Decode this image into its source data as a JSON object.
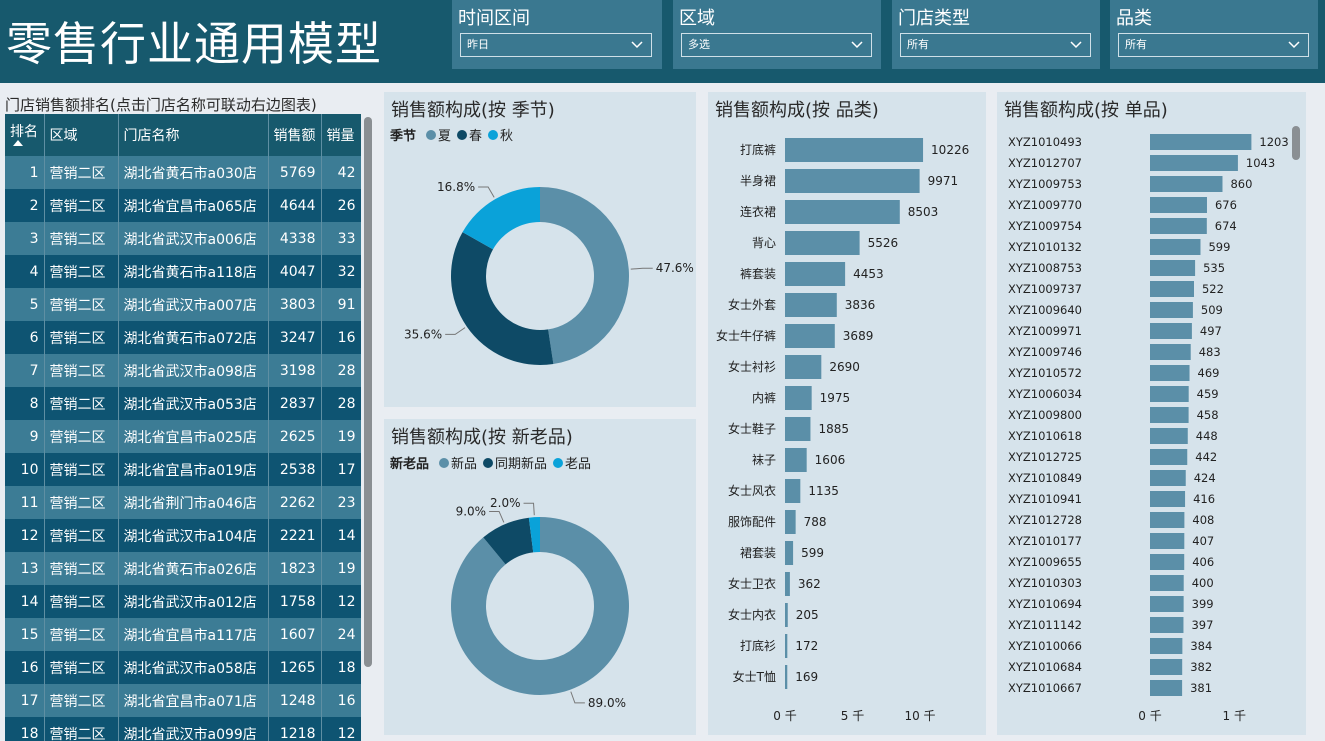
{
  "header": {
    "title": "零售行业通用模型"
  },
  "filters": [
    {
      "label": "时间区间",
      "value": "昨日"
    },
    {
      "label": "区域",
      "value": "多选"
    },
    {
      "label": "门店类型",
      "value": "所有"
    },
    {
      "label": "品类",
      "value": "所有"
    }
  ],
  "store_table": {
    "title": "门店销售额排名(点击门店名称可联动右边图表)",
    "columns": [
      "排名",
      "区域",
      "门店名称",
      "销售额",
      "销量"
    ],
    "sort_icon": "sort-ascending-icon",
    "rows": [
      [
        "1",
        "营销二区",
        "湖北省黄石市a030店",
        "5769",
        "42"
      ],
      [
        "2",
        "营销二区",
        "湖北省宜昌市a065店",
        "4644",
        "26"
      ],
      [
        "3",
        "营销二区",
        "湖北省武汉市a006店",
        "4338",
        "33"
      ],
      [
        "4",
        "营销二区",
        "湖北省黄石市a118店",
        "4047",
        "32"
      ],
      [
        "5",
        "营销二区",
        "湖北省武汉市a007店",
        "3803",
        "91"
      ],
      [
        "6",
        "营销二区",
        "湖北省黄石市a072店",
        "3247",
        "16"
      ],
      [
        "7",
        "营销二区",
        "湖北省武汉市a098店",
        "3198",
        "28"
      ],
      [
        "8",
        "营销二区",
        "湖北省武汉市a053店",
        "2837",
        "28"
      ],
      [
        "9",
        "营销二区",
        "湖北省宜昌市a025店",
        "2625",
        "19"
      ],
      [
        "10",
        "营销二区",
        "湖北省宜昌市a019店",
        "2538",
        "17"
      ],
      [
        "11",
        "营销二区",
        "湖北省荆门市a046店",
        "2262",
        "23"
      ],
      [
        "12",
        "营销二区",
        "湖北省武汉市a104店",
        "2221",
        "14"
      ],
      [
        "13",
        "营销二区",
        "湖北省黄石市a026店",
        "1823",
        "19"
      ],
      [
        "14",
        "营销二区",
        "湖北省武汉市a012店",
        "1758",
        "12"
      ],
      [
        "15",
        "营销二区",
        "湖北省宜昌市a117店",
        "1607",
        "24"
      ],
      [
        "16",
        "营销二区",
        "湖北省武汉市a058店",
        "1265",
        "18"
      ],
      [
        "17",
        "营销二区",
        "湖北省宜昌市a071店",
        "1248",
        "16"
      ],
      [
        "18",
        "营销二区",
        "湖北省武汉市a099店",
        "1218",
        "12"
      ]
    ]
  },
  "chart_data": [
    {
      "type": "pie",
      "title": "销售额构成(按 季节)",
      "legend_title": "季节",
      "categories": [
        "夏",
        "春",
        "秋"
      ],
      "values": [
        47.6,
        35.6,
        16.8
      ],
      "labels": [
        "47.6%",
        "35.6%",
        "16.8%"
      ],
      "colors": [
        "#5b8fa8",
        "#0e4a66",
        "#0aa2d9"
      ]
    },
    {
      "type": "pie",
      "title": "销售额构成(按 新老品)",
      "legend_title": "新老品",
      "categories": [
        "新品",
        "同期新品",
        "老品"
      ],
      "values": [
        89.0,
        9.0,
        2.0
      ],
      "labels": [
        "89.0%",
        "9.0%",
        "2.0%"
      ],
      "colors": [
        "#5b8fa8",
        "#0e4a66",
        "#0aa2d9"
      ]
    },
    {
      "type": "bar",
      "orientation": "horizontal",
      "title": "销售额构成(按 品类)",
      "categories": [
        "打底裤",
        "半身裙",
        "连衣裙",
        "背心",
        "裤套装",
        "女士外套",
        "女士牛仔裤",
        "女士衬衫",
        "内裤",
        "女士鞋子",
        "袜子",
        "女士风衣",
        "服饰配件",
        "裙套装",
        "女士卫衣",
        "女士内衣",
        "打底衫",
        "女士T恤"
      ],
      "values": [
        10226,
        9971,
        8503,
        5526,
        4453,
        3836,
        3689,
        2690,
        1975,
        1885,
        1606,
        1135,
        788,
        599,
        362,
        205,
        172,
        169
      ],
      "xlim": [
        0,
        12000
      ],
      "tick_values": [
        0,
        5000,
        10000
      ],
      "tick_labels": [
        "0 千",
        "5 千",
        "10 千"
      ],
      "color": "#5b8fa8"
    },
    {
      "type": "bar",
      "orientation": "horizontal",
      "title": "销售额构成(按 单品)",
      "categories": [
        "XYZ1010493",
        "XYZ1012707",
        "XYZ1009753",
        "XYZ1009770",
        "XYZ1009754",
        "XYZ1010132",
        "XYZ1008753",
        "XYZ1009737",
        "XYZ1009640",
        "XYZ1009971",
        "XYZ1009746",
        "XYZ1010572",
        "XYZ1006034",
        "XYZ1009800",
        "XYZ1010618",
        "XYZ1012725",
        "XYZ1010849",
        "XYZ1010941",
        "XYZ1012728",
        "XYZ1010177",
        "XYZ1009655",
        "XYZ1010303",
        "XYZ1010694",
        "XYZ1011142",
        "XYZ1010066",
        "XYZ1010684",
        "XYZ1010667"
      ],
      "values": [
        1203,
        1043,
        860,
        676,
        674,
        599,
        535,
        522,
        509,
        497,
        483,
        469,
        459,
        458,
        448,
        442,
        424,
        416,
        408,
        407,
        406,
        400,
        399,
        397,
        384,
        382,
        381
      ],
      "xlim": [
        0,
        1400
      ],
      "tick_values": [
        0,
        1000
      ],
      "tick_labels": [
        "0 千",
        "1 千"
      ],
      "color": "#5b8fa8"
    }
  ]
}
